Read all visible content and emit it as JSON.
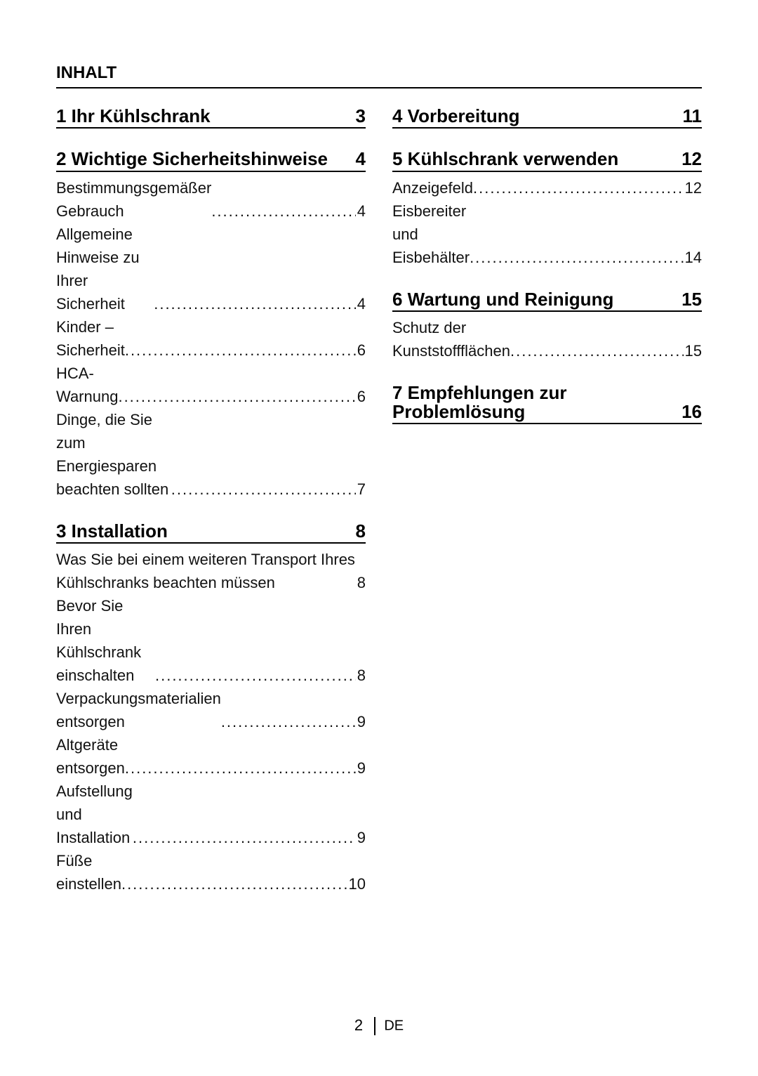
{
  "header": {
    "title": "INHALT"
  },
  "toc": {
    "left": [
      {
        "num": "1",
        "title": "Ihr Kühlschrank",
        "page": "3",
        "items": []
      },
      {
        "num": "2",
        "title": "Wichtige Sicherheitshinweise",
        "page": "4",
        "items": [
          {
            "label": "Bestimmungsgemäßer Gebrauch",
            "page": "4"
          },
          {
            "label": "Allgemeine Hinweise zu Ihrer Sicherheit",
            "page": "4"
          },
          {
            "label": "Kinder – Sicherheit",
            "page": "6"
          },
          {
            "label": "HCA-Warnung",
            "page": "6"
          },
          {
            "label": "Dinge, die Sie zum Energiesparen beachten sollten",
            "page": "7"
          }
        ]
      },
      {
        "num": "3",
        "title": "Installation",
        "page": "8",
        "items": [
          {
            "label": "Was Sie bei einem weiteren Transport Ihres Kühlschranks beachten müssen",
            "page": "8",
            "nodots": true
          },
          {
            "label": "Bevor Sie Ihren Kühlschrank einschalten",
            "page": "8"
          },
          {
            "label": "Verpackungsmaterialien entsorgen",
            "page": "9"
          },
          {
            "label": "Altgeräte entsorgen",
            "page": "9"
          },
          {
            "label": "Aufstellung und Installation",
            "page": "9"
          },
          {
            "label": "Füße einstellen",
            "page": "10"
          }
        ]
      }
    ],
    "right": [
      {
        "num": "4",
        "title": "Vorbereitung",
        "page": "11",
        "items": []
      },
      {
        "num": "5",
        "title": "Kühlschrank verwenden",
        "page": "12",
        "items": [
          {
            "label": "Anzeigefeld",
            "page": "12"
          },
          {
            "label": "Eisbereiter und Eisbehälter",
            "page": "14"
          }
        ]
      },
      {
        "num": "6",
        "title": "Wartung und Reinigung",
        "page": "15",
        "items": [
          {
            "label": "Schutz der Kunststoffflächen ",
            "page": "15"
          }
        ]
      },
      {
        "num": "7",
        "title": "Empfehlungen zur Problemlösung",
        "page": "16",
        "items": []
      }
    ]
  },
  "footer": {
    "page": "2",
    "lang": "DE"
  }
}
